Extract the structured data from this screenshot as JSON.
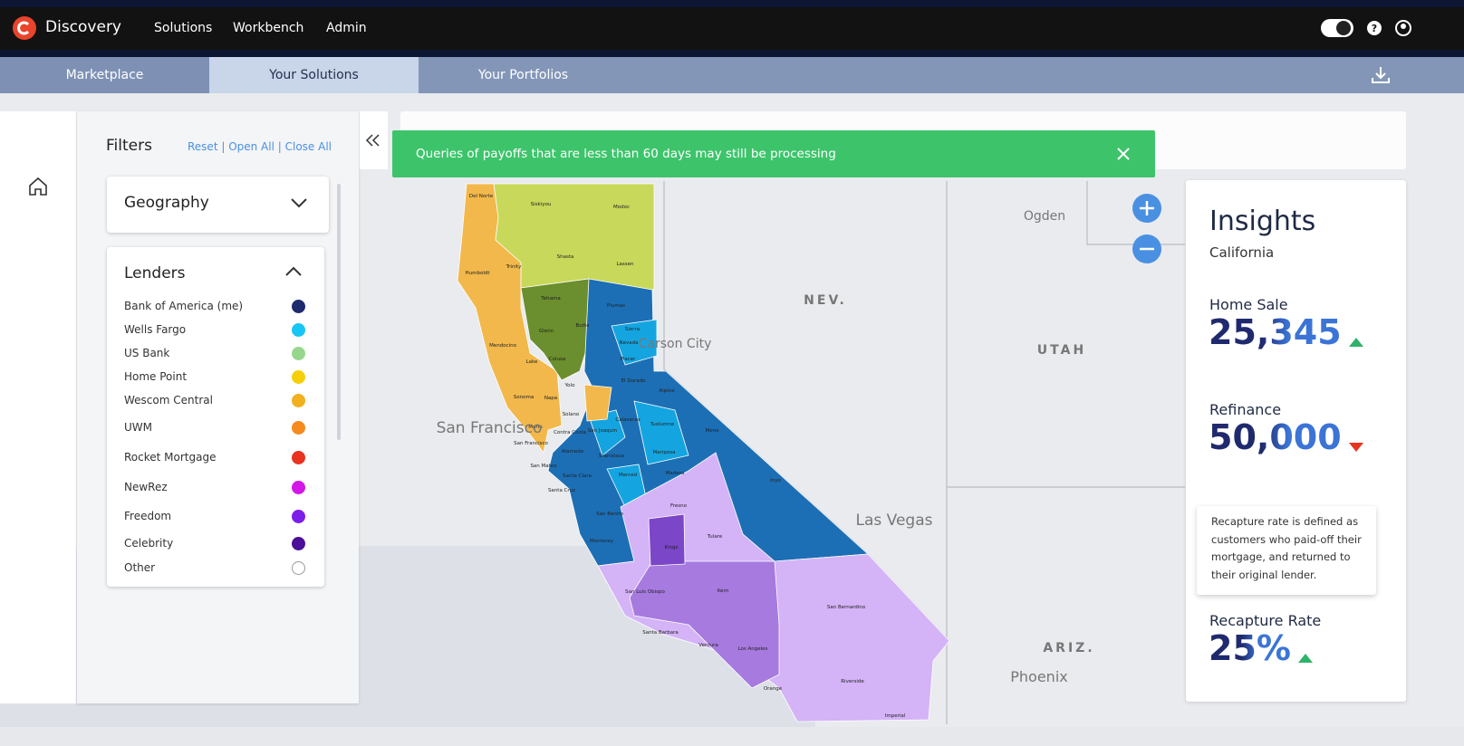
{
  "header": {
    "brand": "Discovery",
    "nav": [
      "Solutions",
      "Workbench",
      "Admin"
    ]
  },
  "tabs": [
    "Marketplace",
    "Your Solutions",
    "Your Portfolios"
  ],
  "filters": {
    "title": "Filters",
    "actions": "Reset | Open All | Close All",
    "geography": "Geography",
    "lenders_title": "Lenders",
    "lenders": [
      {
        "name": "Bank of America (me)",
        "color": "#1e2a6e"
      },
      {
        "name": "Wells Fargo",
        "color": "#18c6f5"
      },
      {
        "name": "US Bank",
        "color": "#98d68f"
      },
      {
        "name": "Home Point",
        "color": "#f6cf0a"
      },
      {
        "name": "Wescom Central",
        "color": "#f1b01e"
      },
      {
        "name": "UWM",
        "color": "#f58a1f"
      },
      {
        "name": "Rocket Mortgage",
        "color": "#e8331f"
      },
      {
        "name": "NewRez",
        "color": "#d218e6"
      },
      {
        "name": "Freedom",
        "color": "#7c1fe8"
      },
      {
        "name": "Celebrity",
        "color": "#4b0f9a"
      },
      {
        "name": "Other",
        "color": "#ffffff"
      }
    ]
  },
  "toast": "Queries of payoffs that are less than 60 days may still be processing",
  "map": {
    "places": [
      "NEV.",
      "UTAH",
      "ARIZ.",
      "Ogden",
      "Carson City",
      "San Francisco",
      "Las Vegas",
      "Phoenix"
    ],
    "counties": [
      "Del Norte",
      "Siskiyou",
      "Modoc",
      "Humboldt",
      "Trinity",
      "Shasta",
      "Lassen",
      "Tehama",
      "Plumas",
      "Glenn",
      "Butte",
      "Mendocino",
      "Colusa",
      "Lake",
      "Sierra",
      "Nevada",
      "Placer",
      "Yolo",
      "Sonoma",
      "Napa",
      "El Dorado",
      "Alpine",
      "Solano",
      "Marin",
      "Contra Costa",
      "San Joaquin",
      "Calaveras",
      "Tuolumne",
      "Mono",
      "San Francisco",
      "Alameda",
      "Stanislaus",
      "Mariposa",
      "San Mateo",
      "Santa Clara",
      "Merced",
      "Madera",
      "Inyo",
      "Santa Cruz",
      "Fresno",
      "San Benito",
      "Tulare",
      "Monterey",
      "Kings",
      "San Luis Obispo",
      "Kern",
      "San Bernardino",
      "Santa Barbara",
      "Ventura",
      "Los Angeles",
      "Riverside",
      "Orange",
      "Imperial"
    ]
  },
  "insights": {
    "title": "Insights",
    "region": "California",
    "metrics": [
      {
        "label": "Home Sale",
        "value": "25,345",
        "trend": "up"
      },
      {
        "label": "Refinance",
        "value": "50,000",
        "trend": "down"
      },
      {
        "label": "Recapture Rate",
        "value": "25%",
        "trend": "up"
      }
    ],
    "tooltip": "Recapture rate is defined as customers who paid-off their mortgage, and returned to their original lender."
  }
}
